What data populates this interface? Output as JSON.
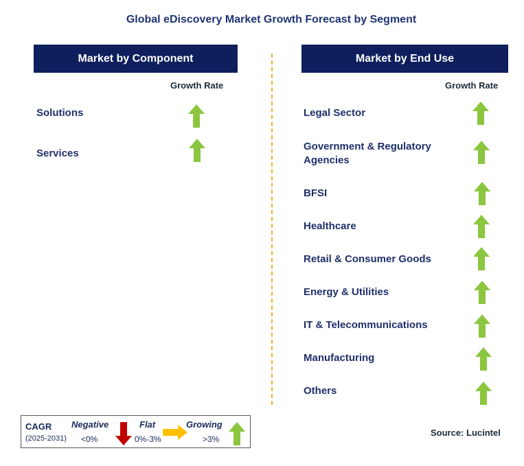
{
  "title": "Global eDiscovery Market Growth Forecast by Segment",
  "left_panel": {
    "header": "Market by Component",
    "growth_rate_label": "Growth Rate",
    "items": [
      {
        "label": "Solutions",
        "trend": "growing"
      },
      {
        "label": "Services",
        "trend": "growing"
      }
    ]
  },
  "right_panel": {
    "header": "Market by End Use",
    "growth_rate_label": "Growth Rate",
    "items": [
      {
        "label": "Legal Sector",
        "trend": "growing"
      },
      {
        "label": "Government & Regulatory",
        "label2": "Agencies",
        "trend": "growing"
      },
      {
        "label": "BFSI",
        "trend": "growing"
      },
      {
        "label": "Healthcare",
        "trend": "growing"
      },
      {
        "label": "Retail & Consumer Goods",
        "trend": "growing"
      },
      {
        "label": "Energy & Utilities",
        "trend": "growing"
      },
      {
        "label": "IT & Telecommunications",
        "trend": "growing"
      },
      {
        "label": "Manufacturing",
        "trend": "growing"
      },
      {
        "label": "Others",
        "trend": "growing"
      }
    ]
  },
  "legend": {
    "cagr_label": "CAGR",
    "period": "(2025-2031)",
    "negative_label": "Negative",
    "negative_range": "<0%",
    "flat_label": "Flat",
    "flat_range": "0%-3%",
    "growing_label": "Growing",
    "growing_range": ">3%"
  },
  "source": "Source: Lucintel",
  "colors": {
    "header_bg": "#0f1e5c",
    "growing": "#8cc63f",
    "negative": "#c00000",
    "flat": "#ffc000",
    "divider": "#f4b12a"
  }
}
